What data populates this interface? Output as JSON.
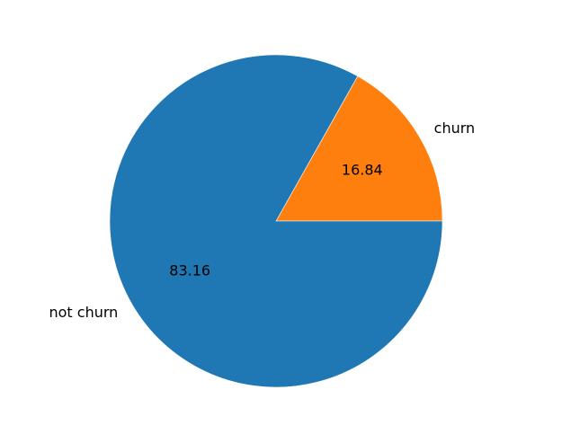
{
  "chart_data": {
    "type": "pie",
    "title": "",
    "slices": [
      {
        "label": "churn",
        "value": 16.84,
        "pct_label": "16.84",
        "color": "#ff7f0e"
      },
      {
        "label": "not churn",
        "value": 83.16,
        "pct_label": "83.16",
        "color": "#1f77b4"
      }
    ],
    "start_angle_deg": 0,
    "direction": "counterclockwise",
    "legend": "none"
  }
}
